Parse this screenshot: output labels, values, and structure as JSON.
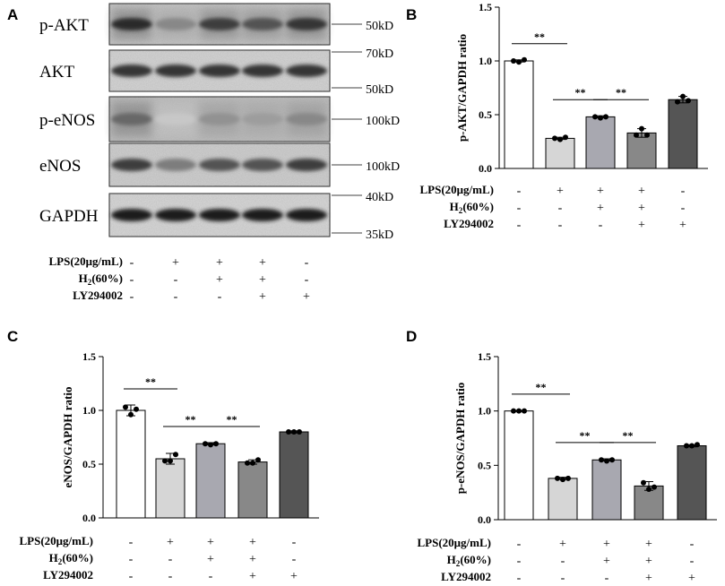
{
  "panels": {
    "A": "A",
    "B": "B",
    "C": "C",
    "D": "D"
  },
  "western_blot": {
    "rows": [
      {
        "name": "p-AKT",
        "markers": [
          "50kD"
        ],
        "band_intensity": [
          0.9,
          0.45,
          0.8,
          0.7,
          0.85
        ],
        "smear": 0.35
      },
      {
        "name": "AKT",
        "markers": [
          "70kD",
          "50kD"
        ],
        "band_intensity": [
          0.85,
          0.85,
          0.85,
          0.85,
          0.85
        ],
        "smear": 0.1
      },
      {
        "name": "p-eNOS",
        "markers": [
          "100kD"
        ],
        "band_intensity": [
          0.6,
          0.15,
          0.4,
          0.35,
          0.45
        ],
        "smear": 0.5
      },
      {
        "name": "eNOS",
        "markers": [
          "100kD"
        ],
        "band_intensity": [
          0.8,
          0.5,
          0.7,
          0.7,
          0.8
        ],
        "smear": 0.2
      },
      {
        "name": "GAPDH",
        "markers": [
          "40kD",
          "35kD"
        ],
        "band_intensity": [
          0.95,
          0.95,
          0.95,
          0.95,
          0.95
        ],
        "smear": 0.05
      }
    ],
    "treatments": {
      "labels": [
        "LPS(20μg/mL)",
        "H2(60%)",
        "LY294002"
      ],
      "signs": [
        [
          "-",
          "+",
          "+",
          "+",
          "-"
        ],
        [
          "-",
          "-",
          "+",
          "+",
          "-"
        ],
        [
          "-",
          "-",
          "-",
          "+",
          "+"
        ]
      ]
    }
  },
  "chart_data": [
    {
      "panel": "B",
      "type": "bar",
      "ylabel": "p-AKT/GAPDH ratio",
      "ylim": [
        0,
        1.5
      ],
      "yticks": [
        "0.0",
        "0.5",
        "1.0",
        "1.5"
      ],
      "values": [
        1.0,
        0.28,
        0.48,
        0.33,
        0.64
      ],
      "errors": [
        0.01,
        0.01,
        0.01,
        0.04,
        0.03
      ],
      "points": [
        [
          1.0,
          0.99,
          1.01
        ],
        [
          0.28,
          0.27,
          0.29
        ],
        [
          0.48,
          0.47,
          0.48
        ],
        [
          0.31,
          0.37,
          0.31
        ],
        [
          0.62,
          0.67,
          0.63
        ]
      ],
      "colors": [
        "#ffffff",
        "#d6d6d6",
        "#a8a8b0",
        "#888888",
        "#555555"
      ],
      "significance": [
        [
          0,
          1,
          "**"
        ],
        [
          1,
          2,
          "**"
        ],
        [
          2,
          3,
          "**"
        ]
      ],
      "treatment_labels": [
        "LPS(20μg/mL)",
        "H2(60%)",
        "LY294002"
      ],
      "signs": [
        [
          "-",
          "+",
          "+",
          "+",
          "-"
        ],
        [
          "-",
          "-",
          "+",
          "+",
          "-"
        ],
        [
          "-",
          "-",
          "-",
          "+",
          "+"
        ]
      ]
    },
    {
      "panel": "C",
      "type": "bar",
      "ylabel": "eNOS/GAPDH ratio",
      "ylim": [
        0,
        1.5
      ],
      "yticks": [
        "0.0",
        "0.5",
        "1.0",
        "1.5"
      ],
      "values": [
        1.0,
        0.55,
        0.69,
        0.52,
        0.8
      ],
      "errors": [
        0.05,
        0.05,
        0.01,
        0.02,
        0.01
      ],
      "points": [
        [
          1.03,
          0.96,
          1.01
        ],
        [
          0.53,
          0.53,
          0.59
        ],
        [
          0.69,
          0.68,
          0.69
        ],
        [
          0.51,
          0.51,
          0.54
        ],
        [
          0.8,
          0.8,
          0.8
        ]
      ],
      "colors": [
        "#ffffff",
        "#d6d6d6",
        "#a8a8b0",
        "#888888",
        "#555555"
      ],
      "significance": [
        [
          0,
          1,
          "**"
        ],
        [
          1,
          2,
          "**"
        ],
        [
          2,
          3,
          "**"
        ]
      ],
      "treatment_labels": [
        "LPS(20μg/mL)",
        "H2(60%)",
        "LY294002"
      ],
      "signs": [
        [
          "-",
          "+",
          "+",
          "+",
          "-"
        ],
        [
          "-",
          "-",
          "+",
          "+",
          "-"
        ],
        [
          "-",
          "-",
          "-",
          "+",
          "+"
        ]
      ]
    },
    {
      "panel": "D",
      "type": "bar",
      "ylabel": "p-eNOS/GAPDH ratio",
      "ylim": [
        0,
        1.5
      ],
      "yticks": [
        "0.0",
        "0.5",
        "1.0",
        "1.5"
      ],
      "values": [
        1.0,
        0.38,
        0.55,
        0.31,
        0.68
      ],
      "errors": [
        0.005,
        0.01,
        0.01,
        0.04,
        0.01
      ],
      "points": [
        [
          1.0,
          1.0,
          1.0
        ],
        [
          0.38,
          0.37,
          0.38
        ],
        [
          0.55,
          0.54,
          0.55
        ],
        [
          0.34,
          0.28,
          0.3
        ],
        [
          0.68,
          0.68,
          0.69
        ]
      ],
      "colors": [
        "#ffffff",
        "#d6d6d6",
        "#a8a8b0",
        "#888888",
        "#555555"
      ],
      "significance": [
        [
          0,
          1,
          "**"
        ],
        [
          1,
          2,
          "**"
        ],
        [
          2,
          3,
          "**"
        ]
      ],
      "treatment_labels": [
        "LPS(20μg/mL)",
        "H2(60%)",
        "LY294002"
      ],
      "signs": [
        [
          "-",
          "+",
          "+",
          "+",
          "-"
        ],
        [
          "-",
          "-",
          "+",
          "+",
          "-"
        ],
        [
          "-",
          "-",
          "-",
          "+",
          "+"
        ]
      ]
    }
  ]
}
